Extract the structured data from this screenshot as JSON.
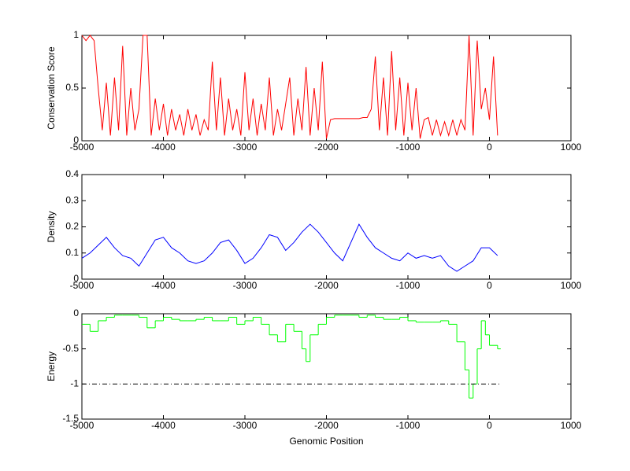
{
  "chart_data": [
    {
      "type": "line",
      "ylabel": "Conservation Score",
      "xlim": [
        -5000,
        1000
      ],
      "xticks": [
        -5000,
        -4000,
        -3000,
        -2000,
        -1000,
        0,
        1000
      ],
      "ylim": [
        0,
        1
      ],
      "yticks": [
        0,
        0.5,
        1
      ],
      "series": [
        {
          "color": "#ff0000",
          "x": [
            -5000,
            -4950,
            -4900,
            -4850,
            -4800,
            -4750,
            -4700,
            -4650,
            -4600,
            -4550,
            -4500,
            -4450,
            -4400,
            -4350,
            -4300,
            -4250,
            -4200,
            -4150,
            -4100,
            -4050,
            -4000,
            -3950,
            -3900,
            -3850,
            -3800,
            -3750,
            -3700,
            -3650,
            -3600,
            -3550,
            -3500,
            -3450,
            -3400,
            -3350,
            -3300,
            -3250,
            -3200,
            -3150,
            -3100,
            -3050,
            -3000,
            -2950,
            -2900,
            -2850,
            -2800,
            -2750,
            -2700,
            -2650,
            -2600,
            -2550,
            -2500,
            -2450,
            -2400,
            -2350,
            -2300,
            -2250,
            -2200,
            -2150,
            -2100,
            -2050,
            -2000,
            -1950,
            -1900,
            -1850,
            -1800,
            -1750,
            -1700,
            -1650,
            -1600,
            -1550,
            -1500,
            -1450,
            -1400,
            -1350,
            -1300,
            -1250,
            -1200,
            -1150,
            -1100,
            -1050,
            -1000,
            -950,
            -900,
            -850,
            -800,
            -750,
            -700,
            -650,
            -600,
            -550,
            -500,
            -450,
            -400,
            -350,
            -300,
            -250,
            -200,
            -150,
            -100,
            -50,
            0,
            50,
            100
          ],
          "values": [
            1,
            0.95,
            1,
            0.95,
            0.5,
            0.1,
            0.55,
            0.05,
            0.6,
            0.1,
            0.9,
            0.05,
            0.5,
            0.1,
            0.3,
            1,
            1,
            0.05,
            0.4,
            0.1,
            0.35,
            0.05,
            0.3,
            0.1,
            0.25,
            0.05,
            0.3,
            0.1,
            0.25,
            0.05,
            0.2,
            0.1,
            0.75,
            0.1,
            0.6,
            0.05,
            0.4,
            0.1,
            0.3,
            0.05,
            0.65,
            0.1,
            0.4,
            0.05,
            0.35,
            0.1,
            0.6,
            0.05,
            0.3,
            0.1,
            0.35,
            0.6,
            0.05,
            0.4,
            0.1,
            0.7,
            0.05,
            0.5,
            0.1,
            0.75,
            0.02,
            0.2,
            0.21,
            0.21,
            0.21,
            0.21,
            0.21,
            0.21,
            0.21,
            0.22,
            0.22,
            0.3,
            0.8,
            0.1,
            0.6,
            0.05,
            0.85,
            0.1,
            0.6,
            0.05,
            0.55,
            0.1,
            0.5,
            0.02,
            0.2,
            0.22,
            0.05,
            0.2,
            0.05,
            0.18,
            0.05,
            0.2,
            0.05,
            0.2,
            0.1,
            1,
            0.05,
            0.95,
            0.3,
            0.5,
            0.2,
            0.8,
            0.05
          ]
        }
      ]
    },
    {
      "type": "line",
      "ylabel": "Density",
      "xlim": [
        -5000,
        1000
      ],
      "xticks": [
        -5000,
        -4000,
        -3000,
        -2000,
        -1000,
        0,
        1000
      ],
      "ylim": [
        0,
        0.4
      ],
      "yticks": [
        0,
        0.1,
        0.2,
        0.3,
        0.4
      ],
      "series": [
        {
          "color": "#0000ff",
          "x": [
            -5000,
            -4900,
            -4800,
            -4700,
            -4600,
            -4500,
            -4400,
            -4300,
            -4200,
            -4100,
            -4000,
            -3900,
            -3800,
            -3700,
            -3600,
            -3500,
            -3400,
            -3300,
            -3200,
            -3100,
            -3000,
            -2900,
            -2800,
            -2700,
            -2600,
            -2500,
            -2400,
            -2300,
            -2200,
            -2100,
            -2000,
            -1900,
            -1800,
            -1700,
            -1600,
            -1500,
            -1400,
            -1300,
            -1200,
            -1100,
            -1000,
            -900,
            -800,
            -700,
            -600,
            -500,
            -400,
            -300,
            -200,
            -100,
            0,
            100
          ],
          "values": [
            0.08,
            0.1,
            0.13,
            0.16,
            0.12,
            0.09,
            0.08,
            0.05,
            0.1,
            0.15,
            0.16,
            0.12,
            0.1,
            0.07,
            0.06,
            0.07,
            0.1,
            0.14,
            0.15,
            0.11,
            0.06,
            0.08,
            0.12,
            0.17,
            0.16,
            0.11,
            0.14,
            0.18,
            0.21,
            0.18,
            0.14,
            0.1,
            0.07,
            0.14,
            0.21,
            0.16,
            0.12,
            0.1,
            0.08,
            0.07,
            0.1,
            0.08,
            0.09,
            0.08,
            0.09,
            0.05,
            0.03,
            0.05,
            0.07,
            0.12,
            0.12,
            0.09
          ]
        }
      ]
    },
    {
      "type": "line",
      "ylabel": "Energy",
      "xlabel": "Genomic Position",
      "xlim": [
        -5000,
        1000
      ],
      "xticks": [
        -5000,
        -4000,
        -3000,
        -2000,
        -1000,
        0,
        1000
      ],
      "ylim": [
        -1.5,
        0
      ],
      "yticks": [
        -1.5,
        -1,
        -0.5,
        0
      ],
      "series": [
        {
          "color": "#00ff00",
          "drawstyle": "steps",
          "x": [
            -5000,
            -4900,
            -4800,
            -4700,
            -4600,
            -4500,
            -4400,
            -4300,
            -4200,
            -4100,
            -4000,
            -3900,
            -3800,
            -3700,
            -3600,
            -3500,
            -3400,
            -3300,
            -3200,
            -3100,
            -3000,
            -2900,
            -2800,
            -2700,
            -2600,
            -2500,
            -2400,
            -2300,
            -2250,
            -2200,
            -2100,
            -2000,
            -1900,
            -1800,
            -1700,
            -1600,
            -1500,
            -1400,
            -1300,
            -1200,
            -1100,
            -1000,
            -900,
            -800,
            -700,
            -600,
            -500,
            -400,
            -300,
            -250,
            -200,
            -150,
            -100,
            -50,
            0,
            100
          ],
          "values": [
            -0.15,
            -0.25,
            -0.1,
            -0.05,
            -0.02,
            -0.02,
            -0.02,
            -0.05,
            -0.2,
            -0.1,
            -0.05,
            -0.08,
            -0.1,
            -0.1,
            -0.08,
            -0.05,
            -0.1,
            -0.1,
            -0.05,
            -0.15,
            -0.1,
            -0.05,
            -0.15,
            -0.3,
            -0.4,
            -0.15,
            -0.25,
            -0.5,
            -0.68,
            -0.3,
            -0.15,
            -0.05,
            -0.02,
            -0.02,
            -0.02,
            -0.05,
            -0.02,
            -0.05,
            -0.08,
            -0.08,
            -0.05,
            -0.1,
            -0.12,
            -0.12,
            -0.12,
            -0.1,
            -0.15,
            -0.4,
            -0.8,
            -1.2,
            -1,
            -0.5,
            -0.1,
            -0.3,
            -0.45,
            -0.5
          ]
        },
        {
          "color": "#000000",
          "linestyle": "dashdot",
          "x": [
            -5000,
            130
          ],
          "values": [
            -1,
            -1
          ]
        }
      ]
    }
  ]
}
